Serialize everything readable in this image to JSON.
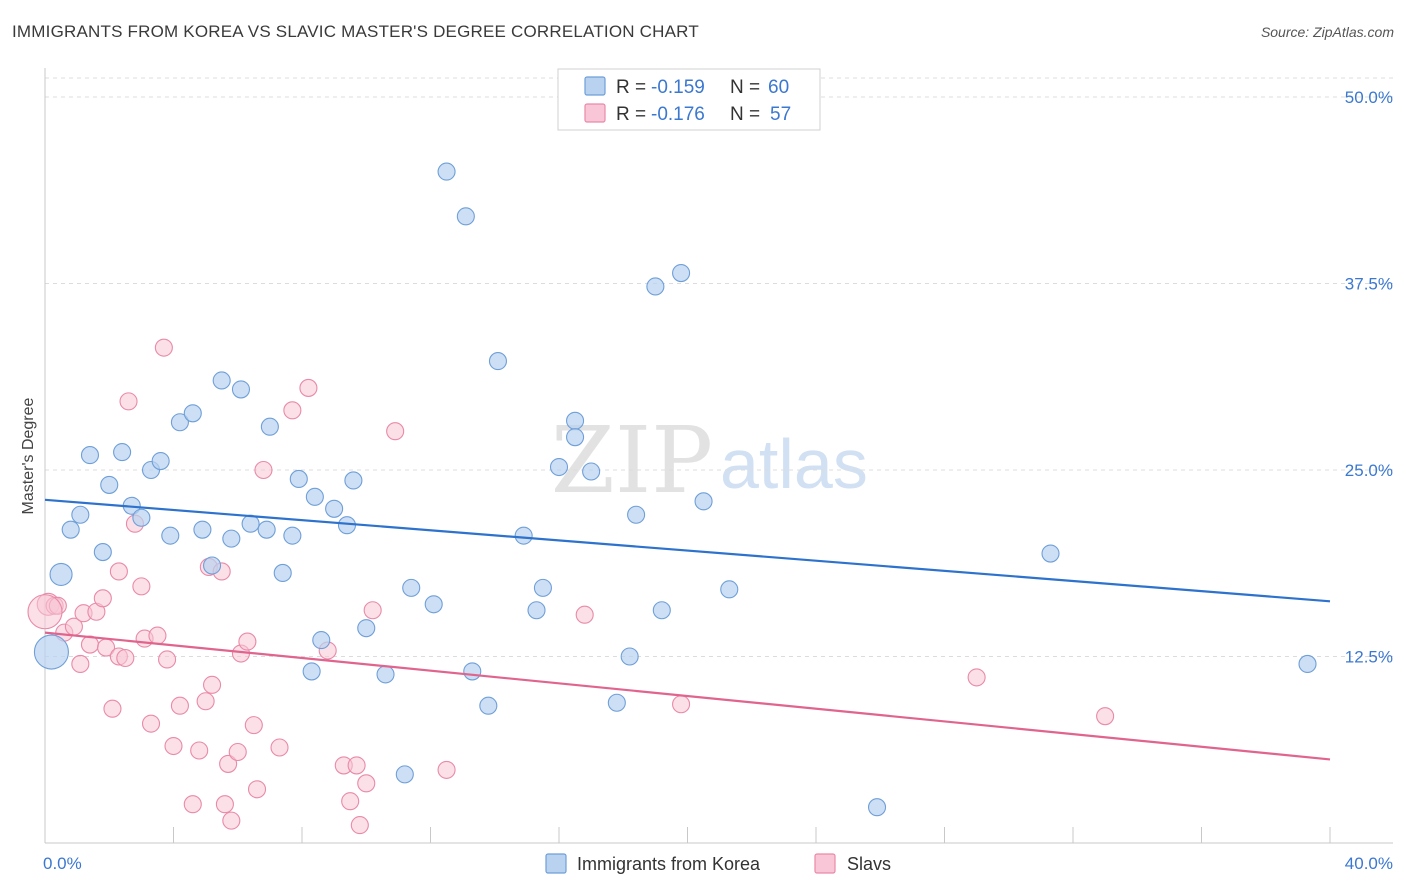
{
  "header": {
    "title": "IMMIGRANTS FROM KOREA VS SLAVIC MASTER'S DEGREE CORRELATION CHART",
    "source": "Source: ZipAtlas.com"
  },
  "watermark": {
    "zip": "ZIP",
    "atlas": "atlas"
  },
  "legend_top": [
    {
      "r_label": "R =",
      "r_value": "-0.159",
      "n_label": "N =",
      "n_value": "60"
    },
    {
      "r_label": "R =",
      "r_value": "-0.176",
      "n_label": "N =",
      "n_value": "57"
    }
  ],
  "legend_bottom": [
    "Immigrants from Korea",
    "Slavs"
  ],
  "colors": {
    "blue_fill": "#b8d2f0",
    "blue_stroke": "#6f9fd8",
    "blue_line": "#2d72cc",
    "pink_fill": "#f8c6d6",
    "pink_stroke": "#e98aa8",
    "pink_line": "#e0648e",
    "value_text": "#3b78d0",
    "grid": "#dcdcdc"
  },
  "chart_data": {
    "type": "scatter",
    "title": "IMMIGRANTS FROM KOREA VS SLAVIC MASTER'S DEGREE CORRELATION CHART",
    "xlabel": "",
    "ylabel": "Master's Degree",
    "xlim": [
      0,
      40
    ],
    "ylim": [
      0,
      50
    ],
    "x_tick_labels": [
      "0.0%",
      "40.0%"
    ],
    "y_tick_labels": [
      "12.5%",
      "25.0%",
      "37.5%",
      "50.0%"
    ],
    "y_ticks": [
      12.5,
      25.0,
      37.5,
      50.0
    ],
    "series": [
      {
        "name": "Immigrants from Korea",
        "R": -0.159,
        "N": 60,
        "trend": {
          "x": [
            0,
            40
          ],
          "y": [
            23.0,
            16.2
          ]
        },
        "points": [
          [
            0.2,
            12.8,
            3
          ],
          [
            0.5,
            18.0,
            2
          ],
          [
            0.8,
            21.0,
            1
          ],
          [
            1.1,
            22.0,
            1
          ],
          [
            1.4,
            26.0,
            1
          ],
          [
            1.8,
            19.5,
            1
          ],
          [
            2.0,
            24.0,
            1
          ],
          [
            2.4,
            26.2,
            1
          ],
          [
            2.7,
            22.6,
            1
          ],
          [
            3.0,
            21.8,
            1
          ],
          [
            3.3,
            25.0,
            1
          ],
          [
            3.6,
            25.6,
            1
          ],
          [
            3.9,
            20.6,
            1
          ],
          [
            4.2,
            28.2,
            1
          ],
          [
            4.6,
            28.8,
            1
          ],
          [
            4.9,
            21.0,
            1
          ],
          [
            5.2,
            18.6,
            1
          ],
          [
            5.5,
            31.0,
            1
          ],
          [
            5.8,
            20.4,
            1
          ],
          [
            6.1,
            30.4,
            1
          ],
          [
            6.4,
            21.4,
            1
          ],
          [
            6.9,
            21.0,
            1
          ],
          [
            7.0,
            27.9,
            1
          ],
          [
            7.4,
            18.1,
            1
          ],
          [
            7.7,
            20.6,
            1
          ],
          [
            7.9,
            24.4,
            1
          ],
          [
            8.4,
            23.2,
            1
          ],
          [
            8.6,
            13.6,
            1
          ],
          [
            8.3,
            11.5,
            1
          ],
          [
            9.0,
            22.4,
            1
          ],
          [
            9.6,
            24.3,
            1
          ],
          [
            9.4,
            21.3,
            1
          ],
          [
            10.0,
            14.4,
            1
          ],
          [
            10.6,
            11.3,
            1
          ],
          [
            11.2,
            4.6,
            1
          ],
          [
            11.4,
            17.1,
            1
          ],
          [
            12.1,
            16.0,
            1
          ],
          [
            12.5,
            45.0,
            1
          ],
          [
            13.1,
            42.0,
            1
          ],
          [
            13.3,
            11.5,
            1
          ],
          [
            13.8,
            9.2,
            1
          ],
          [
            14.1,
            32.3,
            1
          ],
          [
            14.9,
            20.6,
            1
          ],
          [
            15.3,
            15.6,
            1
          ],
          [
            15.5,
            17.1,
            1
          ],
          [
            16.0,
            25.2,
            1
          ],
          [
            16.5,
            28.3,
            1
          ],
          [
            16.5,
            27.2,
            1
          ],
          [
            17.0,
            24.9,
            1
          ],
          [
            17.8,
            9.4,
            1
          ],
          [
            18.2,
            12.5,
            1
          ],
          [
            18.4,
            22.0,
            1
          ],
          [
            19.0,
            37.3,
            1
          ],
          [
            19.2,
            15.6,
            1
          ],
          [
            19.8,
            38.2,
            1
          ],
          [
            20.5,
            22.9,
            1
          ],
          [
            21.3,
            17.0,
            1
          ],
          [
            25.9,
            2.4,
            1
          ],
          [
            31.3,
            19.4,
            1
          ],
          [
            39.3,
            12.0,
            1
          ]
        ]
      },
      {
        "name": "Slavs",
        "R": -0.176,
        "N": 57,
        "trend": {
          "x": [
            0,
            40
          ],
          "y": [
            14.1,
            5.6
          ]
        },
        "points": [
          [
            0.1,
            16.0,
            2
          ],
          [
            0.3,
            15.9,
            1
          ],
          [
            0.4,
            15.9,
            1
          ],
          [
            0.6,
            14.1,
            1
          ],
          [
            0.9,
            14.5,
            1
          ],
          [
            1.1,
            12.0,
            1
          ],
          [
            1.2,
            15.4,
            1
          ],
          [
            1.4,
            13.3,
            1
          ],
          [
            1.6,
            15.5,
            1
          ],
          [
            1.8,
            16.4,
            1
          ],
          [
            1.9,
            13.1,
            1
          ],
          [
            2.1,
            9.0,
            1
          ],
          [
            2.3,
            12.5,
            1
          ],
          [
            2.3,
            18.2,
            1
          ],
          [
            2.5,
            12.4,
            1
          ],
          [
            2.6,
            29.6,
            1
          ],
          [
            2.8,
            21.4,
            1
          ],
          [
            3.0,
            17.2,
            1
          ],
          [
            3.1,
            13.7,
            1
          ],
          [
            3.3,
            8.0,
            1
          ],
          [
            3.5,
            13.9,
            1
          ],
          [
            3.7,
            33.2,
            1
          ],
          [
            3.8,
            12.3,
            1
          ],
          [
            4.0,
            6.5,
            1
          ],
          [
            4.2,
            9.2,
            1
          ],
          [
            4.6,
            2.6,
            1
          ],
          [
            4.8,
            6.2,
            1
          ],
          [
            5.0,
            9.5,
            1
          ],
          [
            5.1,
            18.5,
            1
          ],
          [
            5.2,
            10.6,
            1
          ],
          [
            5.5,
            18.2,
            1
          ],
          [
            5.6,
            2.6,
            1
          ],
          [
            5.7,
            5.3,
            1
          ],
          [
            5.8,
            1.5,
            1
          ],
          [
            6.0,
            6.1,
            1
          ],
          [
            6.1,
            12.7,
            1
          ],
          [
            6.3,
            13.5,
            1
          ],
          [
            6.5,
            7.9,
            1
          ],
          [
            6.6,
            3.6,
            1
          ],
          [
            6.8,
            25.0,
            1
          ],
          [
            7.3,
            6.4,
            1
          ],
          [
            7.7,
            29.0,
            1
          ],
          [
            8.2,
            30.5,
            1
          ],
          [
            8.8,
            12.9,
            1
          ],
          [
            9.3,
            5.2,
            1
          ],
          [
            9.5,
            2.8,
            1
          ],
          [
            9.7,
            5.2,
            1
          ],
          [
            9.8,
            1.2,
            1
          ],
          [
            10.0,
            4.0,
            1
          ],
          [
            10.2,
            15.6,
            1
          ],
          [
            10.9,
            27.6,
            1
          ],
          [
            12.5,
            4.9,
            1
          ],
          [
            16.8,
            15.3,
            1
          ],
          [
            19.8,
            9.3,
            1
          ],
          [
            29.0,
            11.1,
            1
          ],
          [
            33.0,
            8.5,
            1
          ],
          [
            0.0,
            15.5,
            3
          ]
        ]
      }
    ]
  }
}
